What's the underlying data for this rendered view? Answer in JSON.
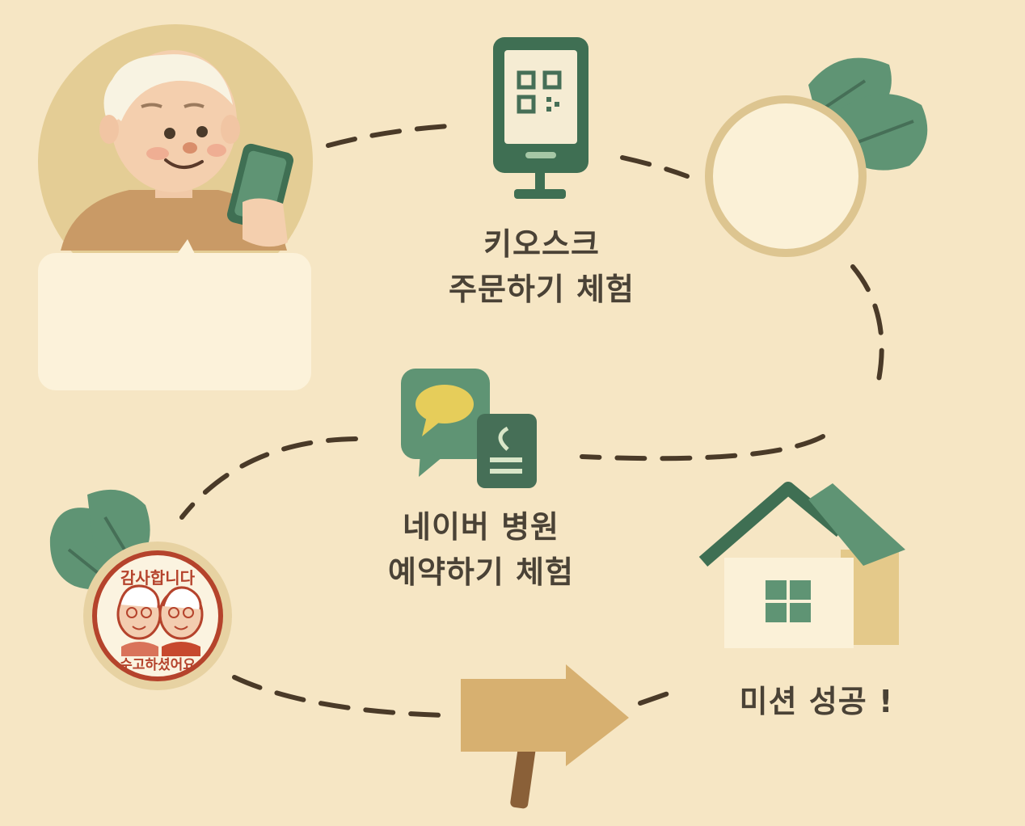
{
  "steps": [
    {
      "id": "kiosk",
      "icon": "kiosk-qr-icon",
      "lines": [
        "키오스크",
        "주문하기 체험"
      ]
    },
    {
      "id": "naver",
      "icon": "chat-bubbles-icon",
      "lines": [
        "네이버 병원",
        "예약하기 체험"
      ]
    },
    {
      "id": "mission",
      "icon": "house-icon",
      "lines": [
        "미션 성공 !"
      ]
    }
  ],
  "badge": {
    "top_text": "감사합니다",
    "bottom_text": "수고하셨어요"
  },
  "colors": {
    "background": "#f6e6c4",
    "green": "#5f9474",
    "dark_green": "#466f57",
    "tan": "#d7b98a",
    "dash": "#4a3a28",
    "text": "#4a4236",
    "badge_red": "#b5432c"
  }
}
